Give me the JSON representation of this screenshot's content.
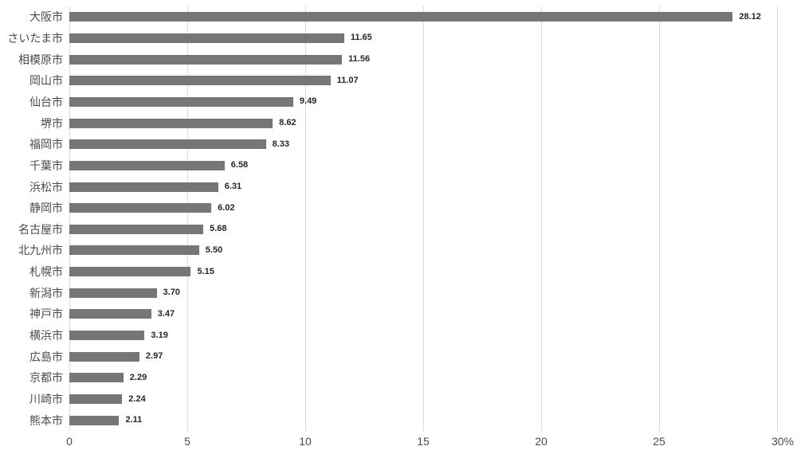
{
  "chart_data": {
    "type": "bar",
    "orientation": "horizontal",
    "title": "",
    "xlabel": "",
    "ylabel": "",
    "unit": "%",
    "xlim": [
      0,
      30
    ],
    "x_ticks": [
      "0",
      "5",
      "10",
      "15",
      "20",
      "25",
      "30%"
    ],
    "grid": "vertical-gridlines-on",
    "legend": "none",
    "categories": [
      "大阪市",
      "さいたま市",
      "相模原市",
      "岡山市",
      "仙台市",
      "堺市",
      "福岡市",
      "千葉市",
      "浜松市",
      "静岡市",
      "名古屋市",
      "北九州市",
      "札幌市",
      "新潟市",
      "神戸市",
      "横浜市",
      "広島市",
      "京都市",
      "川崎市",
      "熊本市"
    ],
    "values": [
      28.12,
      11.65,
      11.56,
      11.07,
      9.49,
      8.62,
      8.33,
      6.58,
      6.31,
      6.02,
      5.68,
      5.5,
      5.15,
      3.7,
      3.47,
      3.19,
      2.97,
      2.29,
      2.24,
      2.11
    ],
    "value_labels": [
      "28.12",
      "11.65",
      "11.56",
      "11.07",
      "9.49",
      "8.62",
      "8.33",
      "6.58",
      "6.31",
      "6.02",
      "5.68",
      "5.50",
      "5.15",
      "3.70",
      "3.47",
      "3.19",
      "2.97",
      "2.29",
      "2.24",
      "2.11"
    ],
    "colors": {
      "bar": "#767676",
      "gridline": "#d9d9d9",
      "category_label": "#4a4a4a",
      "tick_label": "#4a4a4a",
      "value_label": "#262626",
      "background": "#ffffff"
    }
  }
}
